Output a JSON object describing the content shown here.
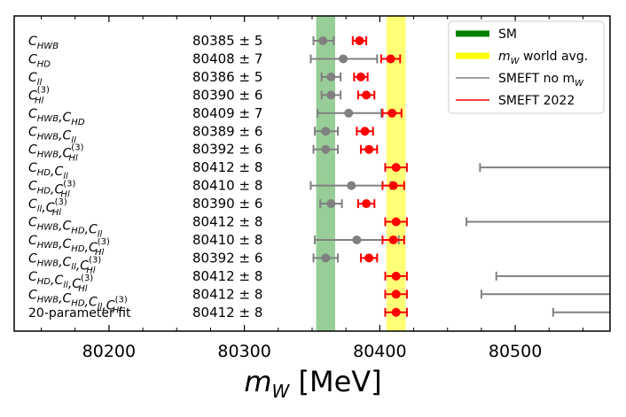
{
  "chart_data": {
    "type": "scatter",
    "xlabel": "m_W [MeV]",
    "xlabel_main": "m",
    "xlabel_sub": "W",
    "xlabel_unit": " [MeV]",
    "xlim": [
      80130,
      80570
    ],
    "xticks": [
      "80200",
      "80300",
      "80400",
      "80500"
    ],
    "xtick_values": [
      80200,
      80300,
      80400,
      80500
    ],
    "bands": [
      {
        "name": "SM",
        "x_range": [
          80353,
          80367
        ],
        "color": "#8cc98c"
      },
      {
        "name": "m_W world avg.",
        "name_main": "m",
        "name_sub": "W",
        "name_rest": " world avg.",
        "x_range": [
          80405,
          80419
        ],
        "color": "#ffff66"
      }
    ],
    "legend": {
      "placement": "top-right",
      "entries": [
        {
          "label": "SM",
          "label_main": "SM",
          "label_sub": "",
          "label_rest": "",
          "color": "#008000",
          "style": "thick"
        },
        {
          "label": "m_W world avg.",
          "label_main": "m",
          "label_sub": "W",
          "label_rest": " world avg.",
          "color": "#ffff00",
          "style": "thick"
        },
        {
          "label": "SMEFT no m_W",
          "label_main": "SMEFT no m",
          "label_sub": "W",
          "label_rest": "",
          "color": "#808080",
          "style": "line"
        },
        {
          "label": "SMEFT 2022",
          "label_main": "SMEFT 2022",
          "label_sub": "",
          "label_rest": "",
          "color": "#ff0000",
          "style": "line"
        }
      ]
    },
    "series": [
      {
        "name": "SMEFT no m_W",
        "color": "#808080"
      },
      {
        "name": "SMEFT 2022",
        "color": "#ff0000"
      }
    ],
    "rows": [
      {
        "label": "C_HWB",
        "label_parts": [
          {
            "t": "C",
            "s": "HWB"
          }
        ],
        "value_text": "80385 ± 5",
        "gray": {
          "x": 80358,
          "lo": 80351,
          "hi": 80366
        },
        "red": {
          "x": 80385,
          "lo": 80380,
          "hi": 80390
        }
      },
      {
        "label": "C_HD",
        "label_parts": [
          {
            "t": "C",
            "s": "HD"
          }
        ],
        "value_text": "80408 ± 7",
        "gray": {
          "x": 80373,
          "lo": 80349,
          "hi": 80398
        },
        "red": {
          "x": 80408,
          "lo": 80401,
          "hi": 80415
        }
      },
      {
        "label": "C_ll",
        "label_parts": [
          {
            "t": "C",
            "s": "ll"
          }
        ],
        "value_text": "80386 ± 5",
        "gray": {
          "x": 80364,
          "lo": 80357,
          "hi": 80371
        },
        "red": {
          "x": 80386,
          "lo": 80381,
          "hi": 80391
        }
      },
      {
        "label": "C_Hl^(3)",
        "label_parts": [
          {
            "t": "C",
            "s": "Hl",
            "p": "(3)"
          }
        ],
        "value_text": "80390 ± 6",
        "gray": {
          "x": 80364,
          "lo": 80357,
          "hi": 80371
        },
        "red": {
          "x": 80390,
          "lo": 80384,
          "hi": 80396
        }
      },
      {
        "label": "C_HWB,C_HD",
        "label_parts": [
          {
            "t": "C",
            "s": "HWB"
          },
          {
            "t": ",C",
            "s": "HD"
          }
        ],
        "value_text": "80409 ± 7",
        "gray": {
          "x": 80377,
          "lo": 80354,
          "hi": 80401
        },
        "red": {
          "x": 80409,
          "lo": 80402,
          "hi": 80416
        }
      },
      {
        "label": "C_HWB,C_ll",
        "label_parts": [
          {
            "t": "C",
            "s": "HWB"
          },
          {
            "t": ",C",
            "s": "ll"
          }
        ],
        "value_text": "80389 ± 6",
        "gray": {
          "x": 80360,
          "lo": 80352,
          "hi": 80369
        },
        "red": {
          "x": 80389,
          "lo": 80383,
          "hi": 80395
        }
      },
      {
        "label": "C_HWB,C_Hl^(3)",
        "label_parts": [
          {
            "t": "C",
            "s": "HWB"
          },
          {
            "t": ",C",
            "s": "Hl",
            "p": "(3)"
          }
        ],
        "value_text": "80392 ± 6",
        "gray": {
          "x": 80360,
          "lo": 80351,
          "hi": 80369
        },
        "red": {
          "x": 80392,
          "lo": 80386,
          "hi": 80398
        }
      },
      {
        "label": "C_HD,C_ll",
        "label_parts": [
          {
            "t": "C",
            "s": "HD"
          },
          {
            "t": ",C",
            "s": "ll"
          }
        ],
        "value_text": "80412 ± 8",
        "gray": {
          "x": null,
          "lo": 80474,
          "hi": 80570
        },
        "red": {
          "x": 80412,
          "lo": 80404,
          "hi": 80420
        }
      },
      {
        "label": "C_HD,C_Hl^(3)",
        "label_parts": [
          {
            "t": "C",
            "s": "HD"
          },
          {
            "t": ",C",
            "s": "Hl",
            "p": "(3)"
          }
        ],
        "value_text": "80410 ± 8",
        "gray": {
          "x": 80379,
          "lo": 80349,
          "hi": 80408
        },
        "red": {
          "x": 80410,
          "lo": 80402,
          "hi": 80418
        }
      },
      {
        "label": "C_ll,C_Hl^(3)",
        "label_parts": [
          {
            "t": "C",
            "s": "ll"
          },
          {
            "t": ",C",
            "s": "Hl",
            "p": "(3)"
          }
        ],
        "value_text": "80390 ± 6",
        "gray": {
          "x": 80364,
          "lo": 80356,
          "hi": 80372
        },
        "red": {
          "x": 80390,
          "lo": 80384,
          "hi": 80396
        }
      },
      {
        "label": "C_HWB,C_HD,C_ll",
        "label_parts": [
          {
            "t": "C",
            "s": "HWB"
          },
          {
            "t": ",C",
            "s": "HD"
          },
          {
            "t": ",C",
            "s": "ll"
          }
        ],
        "value_text": "80412 ± 8",
        "gray": {
          "x": null,
          "lo": 80464,
          "hi": 80570
        },
        "red": {
          "x": 80412,
          "lo": 80404,
          "hi": 80420
        }
      },
      {
        "label": "C_HWB,C_HD,C_Hl^(3)",
        "label_parts": [
          {
            "t": "C",
            "s": "HWB"
          },
          {
            "t": ",C",
            "s": "HD"
          },
          {
            "t": ",C",
            "s": "Hl",
            "p": "(3)"
          }
        ],
        "value_text": "80410 ± 8",
        "gray": {
          "x": 80383,
          "lo": 80352,
          "hi": 80414
        },
        "red": {
          "x": 80410,
          "lo": 80402,
          "hi": 80418
        }
      },
      {
        "label": "C_HWB,C_ll,C_Hl^(3)",
        "label_parts": [
          {
            "t": "C",
            "s": "HWB"
          },
          {
            "t": ",C",
            "s": "ll"
          },
          {
            "t": ",C",
            "s": "Hl",
            "p": "(3)"
          }
        ],
        "value_text": "80392 ± 6",
        "gray": {
          "x": 80360,
          "lo": 80351,
          "hi": 80369
        },
        "red": {
          "x": 80392,
          "lo": 80386,
          "hi": 80398
        }
      },
      {
        "label": "C_HD,C_ll,C_Hl^(3)",
        "label_parts": [
          {
            "t": "C",
            "s": "HD"
          },
          {
            "t": ",C",
            "s": "ll"
          },
          {
            "t": ",C",
            "s": "Hl",
            "p": "(3)"
          }
        ],
        "value_text": "80412 ± 8",
        "gray": {
          "x": null,
          "lo": 80486,
          "hi": 80570
        },
        "red": {
          "x": 80412,
          "lo": 80404,
          "hi": 80420
        }
      },
      {
        "label": "C_HWB,C_HD,C_ll,C_Hl^(3)",
        "label_parts": [
          {
            "t": "C",
            "s": "HWB"
          },
          {
            "t": ",C",
            "s": "HD"
          },
          {
            "t": ",C",
            "s": "ll"
          },
          {
            "t": ",C",
            "s": "Hl",
            "p": "(3)"
          }
        ],
        "value_text": "80412 ± 8",
        "gray": {
          "x": null,
          "lo": 80475,
          "hi": 80570
        },
        "red": {
          "x": 80412,
          "lo": 80404,
          "hi": 80420
        }
      },
      {
        "label": "20-parameter fit",
        "label_parts": [
          {
            "t": "20-parameter fit",
            "plain": true
          }
        ],
        "value_text": "80412 ± 8",
        "gray": {
          "x": null,
          "lo": 80528,
          "hi": 80570
        },
        "red": {
          "x": 80412,
          "lo": 80404,
          "hi": 80420
        }
      }
    ]
  }
}
